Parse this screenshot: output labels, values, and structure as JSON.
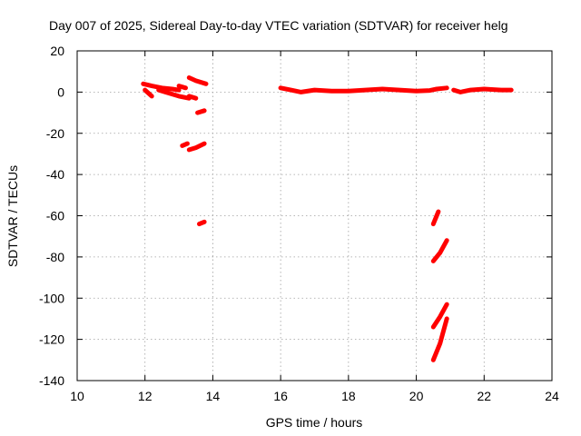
{
  "chart_data": {
    "type": "scatter",
    "title": "Day 007 of 2025, Sidereal Day-to-day VTEC variation (SDTVAR) for receiver helg",
    "xlabel": "GPS time / hours",
    "ylabel": "SDTVAR / TECUs",
    "xlim": [
      10,
      24
    ],
    "ylim": [
      -140,
      20
    ],
    "xticks": [
      10,
      12,
      14,
      16,
      18,
      20,
      22,
      24
    ],
    "yticks": [
      -140,
      -120,
      -100,
      -80,
      -60,
      -40,
      -20,
      0,
      20
    ],
    "grid": true,
    "series": [
      {
        "color": "#ff0000",
        "segments": [
          [
            [
              11.95,
              4
            ],
            [
              12.2,
              3
            ],
            [
              12.5,
              2
            ],
            [
              12.8,
              1.5
            ],
            [
              13.0,
              1
            ]
          ],
          [
            [
              12.0,
              1
            ],
            [
              12.2,
              -2
            ]
          ],
          [
            [
              12.4,
              1
            ],
            [
              12.6,
              0
            ],
            [
              12.8,
              -1
            ],
            [
              13.0,
              -2
            ],
            [
              13.3,
              -3
            ]
          ],
          [
            [
              13.0,
              3
            ],
            [
              13.2,
              2
            ]
          ],
          [
            [
              13.3,
              -2
            ],
            [
              13.5,
              -3
            ]
          ],
          [
            [
              13.3,
              7
            ],
            [
              13.5,
              5.5
            ],
            [
              13.8,
              4
            ]
          ],
          [
            [
              13.55,
              -10
            ],
            [
              13.75,
              -9
            ]
          ],
          [
            [
              13.1,
              -26
            ],
            [
              13.25,
              -25
            ]
          ],
          [
            [
              13.3,
              -28
            ],
            [
              13.5,
              -27
            ],
            [
              13.75,
              -25
            ]
          ],
          [
            [
              13.6,
              -64
            ],
            [
              13.75,
              -63
            ]
          ],
          [
            [
              16.0,
              2
            ],
            [
              16.3,
              1
            ],
            [
              16.6,
              0
            ],
            [
              17.0,
              1
            ],
            [
              17.5,
              0.5
            ],
            [
              18.0,
              0.5
            ],
            [
              18.5,
              1
            ],
            [
              19.0,
              1.5
            ],
            [
              19.5,
              1
            ],
            [
              20.0,
              0.5
            ],
            [
              20.4,
              0.8
            ],
            [
              20.6,
              1.5
            ],
            [
              20.9,
              2
            ]
          ],
          [
            [
              21.1,
              1
            ],
            [
              21.3,
              0
            ],
            [
              21.6,
              1
            ],
            [
              22.0,
              1.5
            ],
            [
              22.5,
              1
            ],
            [
              22.8,
              1
            ]
          ],
          [
            [
              20.5,
              -64
            ],
            [
              20.65,
              -58
            ]
          ],
          [
            [
              20.5,
              -82
            ],
            [
              20.7,
              -78
            ],
            [
              20.9,
              -72
            ]
          ],
          [
            [
              20.5,
              -114
            ],
            [
              20.7,
              -109
            ],
            [
              20.9,
              -103
            ]
          ],
          [
            [
              20.5,
              -130
            ],
            [
              20.7,
              -122
            ],
            [
              20.9,
              -110
            ]
          ]
        ]
      }
    ]
  }
}
